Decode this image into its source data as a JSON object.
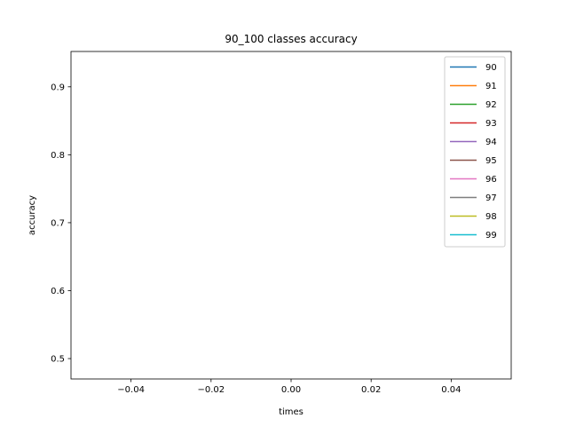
{
  "chart_data": {
    "type": "line",
    "title": "90_100 classes accuracy",
    "xlabel": "times",
    "ylabel": "accuracy",
    "xlim": [
      -0.055,
      0.055
    ],
    "ylim": [
      0.47,
      0.952
    ],
    "x_ticks": [
      -0.04,
      -0.02,
      0.0,
      0.02,
      0.04
    ],
    "x_tick_labels": [
      "−0.04",
      "−0.02",
      "0.00",
      "0.02",
      "0.04"
    ],
    "y_ticks": [
      0.5,
      0.6,
      0.7,
      0.8,
      0.9
    ],
    "y_tick_labels": [
      "0.5",
      "0.6",
      "0.7",
      "0.8",
      "0.9"
    ],
    "grid": false,
    "legend_position": "top-right",
    "series": [
      {
        "name": "90",
        "color": "#1f77b4",
        "x": [],
        "y": []
      },
      {
        "name": "91",
        "color": "#ff7f0e",
        "x": [],
        "y": []
      },
      {
        "name": "92",
        "color": "#2ca02c",
        "x": [],
        "y": []
      },
      {
        "name": "93",
        "color": "#d62728",
        "x": [],
        "y": []
      },
      {
        "name": "94",
        "color": "#9467bd",
        "x": [],
        "y": []
      },
      {
        "name": "95",
        "color": "#8c564b",
        "x": [],
        "y": []
      },
      {
        "name": "96",
        "color": "#e377c2",
        "x": [],
        "y": []
      },
      {
        "name": "97",
        "color": "#7f7f7f",
        "x": [],
        "y": []
      },
      {
        "name": "98",
        "color": "#bcbd22",
        "x": [],
        "y": []
      },
      {
        "name": "99",
        "color": "#17becf",
        "x": [],
        "y": []
      }
    ]
  }
}
